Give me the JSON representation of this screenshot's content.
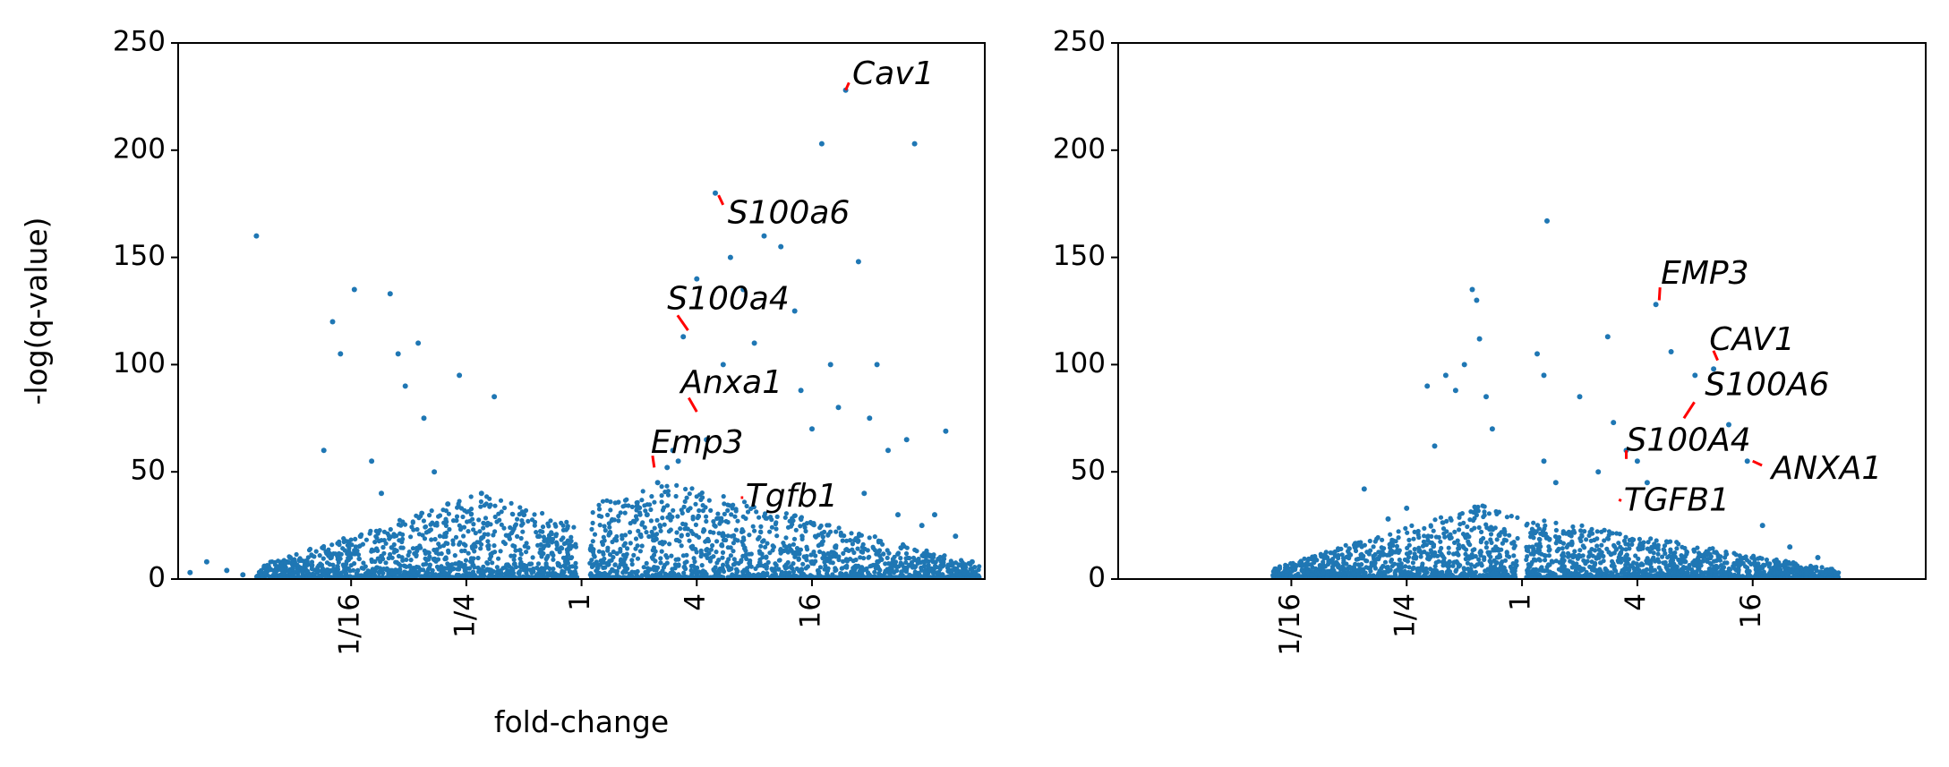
{
  "chart_data": [
    {
      "type": "scatter",
      "title": "",
      "xlabel": "fold-change",
      "ylabel": "-log(q-value)",
      "x_scale": "log2",
      "xlim": [
        0.0078,
        128
      ],
      "ylim": [
        0,
        250
      ],
      "x_ticks": [
        {
          "value": 0.0625,
          "label": "1/16"
        },
        {
          "value": 0.25,
          "label": "1/4"
        },
        {
          "value": 1,
          "label": "1"
        },
        {
          "value": 4,
          "label": "4"
        },
        {
          "value": 16,
          "label": "16"
        }
      ],
      "y_ticks": [
        0,
        50,
        100,
        150,
        200,
        250
      ],
      "grid": false,
      "color": "#1f77b4",
      "highlight_color": "#ff0000",
      "points": [
        [
          0.009,
          3
        ],
        [
          0.011,
          8
        ],
        [
          0.014,
          4
        ],
        [
          0.017,
          2
        ],
        [
          0.022,
          6
        ],
        [
          0.02,
          160
        ],
        [
          0.03,
          10
        ],
        [
          0.035,
          5
        ],
        [
          0.045,
          60
        ],
        [
          0.05,
          120
        ],
        [
          0.055,
          105
        ],
        [
          0.065,
          135
        ],
        [
          0.07,
          20
        ],
        [
          0.08,
          55
        ],
        [
          0.09,
          40
        ],
        [
          0.1,
          133
        ],
        [
          0.11,
          105
        ],
        [
          0.12,
          90
        ],
        [
          0.14,
          110
        ],
        [
          0.15,
          75
        ],
        [
          0.17,
          50
        ],
        [
          0.2,
          35
        ],
        [
          0.23,
          95
        ],
        [
          0.3,
          40
        ],
        [
          0.35,
          85
        ],
        [
          0.5,
          30
        ],
        [
          0.6,
          20
        ],
        [
          0.7,
          12
        ],
        [
          2.2,
          30
        ],
        [
          2.5,
          45
        ],
        [
          2.8,
          52
        ],
        [
          3,
          60
        ],
        [
          3.2,
          55
        ],
        [
          3.4,
          113
        ],
        [
          4,
          140
        ],
        [
          4.5,
          65
        ],
        [
          5,
          180
        ],
        [
          5.5,
          100
        ],
        [
          6,
          150
        ],
        [
          7,
          135
        ],
        [
          8,
          110
        ],
        [
          9,
          160
        ],
        [
          11,
          155
        ],
        [
          13,
          125
        ],
        [
          14,
          88
        ],
        [
          16,
          70
        ],
        [
          18,
          203
        ],
        [
          20,
          100
        ],
        [
          22,
          80
        ],
        [
          24,
          228
        ],
        [
          28,
          148
        ],
        [
          30,
          40
        ],
        [
          32,
          75
        ],
        [
          35,
          100
        ],
        [
          40,
          60
        ],
        [
          45,
          30
        ],
        [
          50,
          65
        ],
        [
          55,
          203
        ],
        [
          60,
          25
        ],
        [
          70,
          30
        ],
        [
          80,
          69
        ],
        [
          90,
          20
        ],
        [
          110,
          8
        ]
      ],
      "cloud": [
        {
          "xmin": 0.02,
          "xmax": 0.95,
          "center": 0.3,
          "ymax": 40,
          "count": 1300
        },
        {
          "xmin": 1.1,
          "xmax": 120,
          "center": 3,
          "ymax": 45,
          "count": 1500
        }
      ],
      "labels": [
        {
          "text": "Cav1",
          "x": 24,
          "y": 228,
          "label_x": 26,
          "label_y": 235
        },
        {
          "text": "S100a6",
          "x": 5.2,
          "y": 179,
          "label_x": 5.8,
          "label_y": 170
        },
        {
          "text": "S100a4",
          "x": 3.6,
          "y": 116,
          "label_x": 2.8,
          "label_y": 130
        },
        {
          "text": "Anxa1",
          "x": 4,
          "y": 78,
          "label_x": 3.3,
          "label_y": 91
        },
        {
          "text": "Emp3",
          "x": 2.4,
          "y": 52,
          "label_x": 2.3,
          "label_y": 63
        },
        {
          "text": "Tgfb1",
          "x": 6.8,
          "y": 38,
          "label_x": 7.2,
          "label_y": 38
        }
      ]
    },
    {
      "type": "scatter",
      "title": "",
      "xlabel": "",
      "ylabel": "",
      "x_scale": "log2",
      "xlim": [
        0.0078,
        128
      ],
      "ylim": [
        0,
        250
      ],
      "x_ticks": [
        {
          "value": 0.0625,
          "label": "1/16"
        },
        {
          "value": 0.25,
          "label": "1/4"
        },
        {
          "value": 1,
          "label": "1"
        },
        {
          "value": 4,
          "label": "4"
        },
        {
          "value": 16,
          "label": "16"
        }
      ],
      "y_ticks": [
        0,
        50,
        100,
        150,
        200,
        250
      ],
      "grid": false,
      "color": "#1f77b4",
      "highlight_color": "#ff0000",
      "points": [
        [
          0.06,
          5
        ],
        [
          0.08,
          2
        ],
        [
          0.15,
          42
        ],
        [
          0.2,
          28
        ],
        [
          0.25,
          33
        ],
        [
          0.32,
          90
        ],
        [
          0.35,
          62
        ],
        [
          0.4,
          95
        ],
        [
          0.45,
          88
        ],
        [
          0.5,
          100
        ],
        [
          0.55,
          135
        ],
        [
          0.58,
          130
        ],
        [
          0.6,
          112
        ],
        [
          0.65,
          85
        ],
        [
          0.7,
          70
        ],
        [
          1.2,
          105
        ],
        [
          1.3,
          55
        ],
        [
          1.3,
          95
        ],
        [
          1.35,
          167
        ],
        [
          1.5,
          45
        ],
        [
          2,
          85
        ],
        [
          2.5,
          50
        ],
        [
          2.8,
          113
        ],
        [
          3,
          73
        ],
        [
          3.5,
          60
        ],
        [
          4,
          55
        ],
        [
          4.5,
          45
        ],
        [
          5,
          128
        ],
        [
          6,
          106
        ],
        [
          8,
          95
        ],
        [
          10,
          98
        ],
        [
          12,
          72
        ],
        [
          15,
          55
        ],
        [
          18,
          25
        ],
        [
          25,
          15
        ],
        [
          35,
          10
        ]
      ],
      "cloud": [
        {
          "xmin": 0.05,
          "xmax": 0.95,
          "center": 0.6,
          "ymax": 35,
          "count": 1100
        },
        {
          "xmin": 1.05,
          "xmax": 45,
          "center": 1.3,
          "ymax": 28,
          "count": 1300
        }
      ],
      "labels": [
        {
          "text": "EMP3",
          "x": 5.2,
          "y": 130,
          "label_x": 5.3,
          "label_y": 142
        },
        {
          "text": "CAV1",
          "x": 10.5,
          "y": 102,
          "label_x": 9.5,
          "label_y": 111
        },
        {
          "text": "S100A6",
          "x": 7,
          "y": 75,
          "label_x": 9,
          "label_y": 90
        },
        {
          "text": "S100A4",
          "x": 3.5,
          "y": 56,
          "label_x": 3.5,
          "label_y": 64
        },
        {
          "text": "ANXA1",
          "x": 16,
          "y": 55,
          "label_x": 20,
          "label_y": 51
        },
        {
          "text": "TGFB1",
          "x": 3.2,
          "y": 37,
          "label_x": 3.4,
          "label_y": 36
        }
      ]
    }
  ]
}
